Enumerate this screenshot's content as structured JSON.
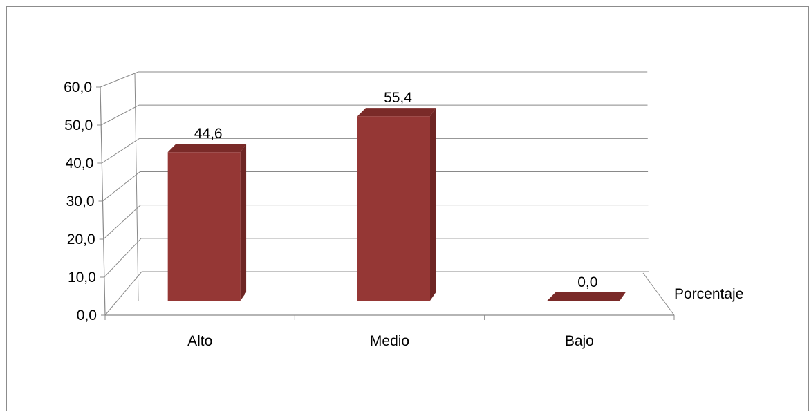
{
  "chart_data": {
    "type": "bar",
    "categories": [
      "Alto",
      "Medio",
      "Bajo"
    ],
    "series": [
      {
        "name": "Porcentaje",
        "values": [
          44.6,
          55.4,
          0.0
        ]
      }
    ],
    "value_labels": [
      "44,6",
      "55,4",
      "0,0"
    ],
    "ylim": [
      0,
      60
    ],
    "yticks": [
      "0,0",
      "10,0",
      "20,0",
      "30,0",
      "40,0",
      "50,0",
      "60,0"
    ],
    "grid": true,
    "legend_position": "right",
    "style": "3d-column",
    "colors": {
      "bar_front": "#953735",
      "bar_side": "#6E2624",
      "bar_top": "#7A2A28",
      "grid": "#898989"
    }
  }
}
